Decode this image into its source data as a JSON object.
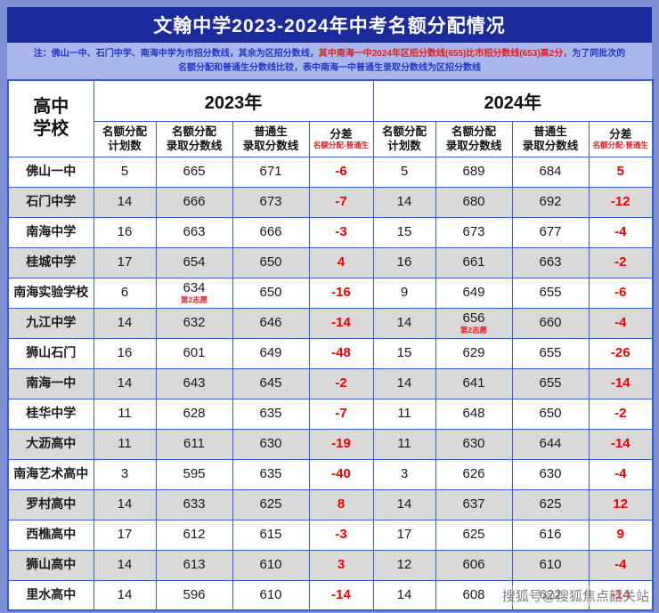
{
  "title": {
    "text": "文翰中学2023-2024年中考名额分配情况"
  },
  "note": {
    "seg1": "注：佛山一中、石门中学、南海中学为市招分数线，其余为区招分数线，",
    "seg2": "其中南海一中2024年区招分数线(655)比市招分数线(653)高2分，",
    "seg3": "为了同批次的",
    "line2": "名额分配和普通生分数线比较，表中南海一中普通生录取分数线为区招分数线"
  },
  "colors": {
    "frame": "#7e90d2",
    "title_bg": "#1c2b9b",
    "note_bg": "#a9b7ec",
    "grid_blue": "#3a5ec9",
    "stripe_gray": "#d9d9d9",
    "diff_red": "#ee0000",
    "note_blue": "#2438c8",
    "note_red": "#e02020"
  },
  "table": {
    "corner": {
      "line1": "高中",
      "line2": "学校"
    },
    "years": [
      "2023年",
      "2024年"
    ],
    "subheaders": [
      {
        "line1": "名额分配",
        "line2": "计划数"
      },
      {
        "line1": "名额分配",
        "line2": "录取分数线"
      },
      {
        "line1": "普通生",
        "line2": "录取分数线"
      },
      {
        "line1": "分差",
        "line2": "名额分配-普通生"
      }
    ]
  },
  "watermark": {
    "text": "搜狐号@搜狐焦点韶关站"
  },
  "chart_data": {
    "type": "table",
    "title": "文翰中学2023-2024年中考名额分配情况",
    "columns": [
      "高中学校",
      "2023年名额分配计划数",
      "2023年名额分配录取分数线",
      "2023年普通生录取分数线",
      "2023年分差(名额分配-普通生)",
      "2024年名额分配计划数",
      "2024年名额分配录取分数线",
      "2024年普通生录取分数线",
      "2024年分差(名额分配-普通生)"
    ],
    "rows": [
      [
        "佛山一中",
        5,
        665,
        671,
        -6,
        5,
        689,
        684,
        5
      ],
      [
        "石门中学",
        14,
        666,
        673,
        -7,
        14,
        680,
        692,
        -12
      ],
      [
        "南海中学",
        16,
        663,
        666,
        -3,
        15,
        673,
        677,
        -4
      ],
      [
        "桂城中学",
        17,
        654,
        650,
        4,
        16,
        661,
        663,
        -2
      ],
      [
        "南海实验学校",
        6,
        634,
        650,
        -16,
        9,
        649,
        655,
        -6
      ],
      [
        "九江中学",
        14,
        632,
        646,
        -14,
        14,
        656,
        660,
        -4
      ],
      [
        "狮山石门",
        16,
        601,
        649,
        -48,
        15,
        629,
        655,
        -26
      ],
      [
        "南海一中",
        14,
        643,
        645,
        -2,
        14,
        641,
        655,
        -14
      ],
      [
        "桂华中学",
        11,
        628,
        635,
        -7,
        11,
        648,
        650,
        -2
      ],
      [
        "大沥高中",
        11,
        611,
        630,
        -19,
        11,
        630,
        644,
        -14
      ],
      [
        "南海艺术高中",
        3,
        595,
        635,
        -40,
        3,
        626,
        630,
        -4
      ],
      [
        "罗村高中",
        14,
        633,
        625,
        8,
        14,
        637,
        625,
        12
      ],
      [
        "西樵高中",
        17,
        612,
        615,
        -3,
        17,
        625,
        616,
        9
      ],
      [
        "狮山高中",
        14,
        613,
        610,
        3,
        12,
        606,
        610,
        -4
      ],
      [
        "里水高中",
        14,
        596,
        610,
        -14,
        14,
        608,
        622,
        -14
      ]
    ],
    "cell_notes": {
      "4,2": "第2志愿",
      "5,6": "第2志愿"
    }
  }
}
